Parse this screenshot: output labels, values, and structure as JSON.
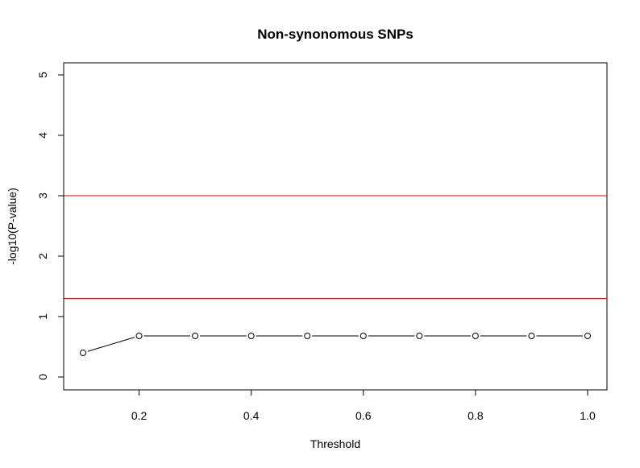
{
  "chart_data": {
    "type": "line",
    "title": "Non-synonomous SNPs",
    "xlabel": "Threshold",
    "ylabel": "-log10(P-value)",
    "xlim": [
      0.1,
      1.0
    ],
    "ylim": [
      0,
      5
    ],
    "x_ticks": [
      "0.2",
      "0.4",
      "0.6",
      "0.8",
      "1.0"
    ],
    "y_ticks": [
      "0",
      "1",
      "2",
      "3",
      "4",
      "5"
    ],
    "series": [
      {
        "x": [
          0.1,
          0.2,
          0.3,
          0.4,
          0.5,
          0.6,
          0.7,
          0.8,
          0.9,
          1.0
        ],
        "values": [
          0.4,
          0.68,
          0.68,
          0.68,
          0.68,
          0.68,
          0.68,
          0.68,
          0.68,
          0.68
        ],
        "marker": "open-circle",
        "color": "#000000"
      }
    ],
    "reference_lines": [
      {
        "y": 1.3,
        "color": "#ff0000"
      },
      {
        "y": 3,
        "color": "#ff0000"
      }
    ],
    "grid": false
  }
}
